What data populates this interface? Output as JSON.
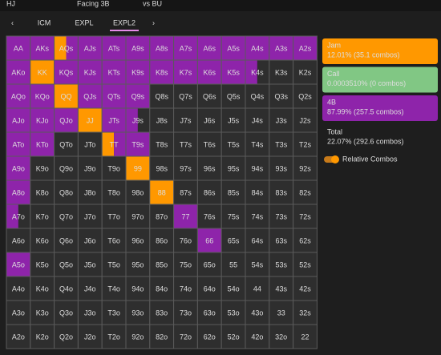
{
  "header": {
    "position": "HJ",
    "facing": "Facing 3B",
    "versus": "vs BU"
  },
  "tabs": [
    "ICM",
    "EXPL",
    "EXPL2"
  ],
  "active_tab": 2,
  "grid": {
    "rows": [
      [
        "AA",
        "AKs",
        "AQs",
        "AJs",
        "ATs",
        "A9s",
        "A8s",
        "A7s",
        "A6s",
        "A5s",
        "A4s",
        "A3s",
        "A2s"
      ],
      [
        "AKo",
        "KK",
        "KQs",
        "KJs",
        "KTs",
        "K9s",
        "K8s",
        "K7s",
        "K6s",
        "K5s",
        "K4s",
        "K3s",
        "K2s"
      ],
      [
        "AQo",
        "KQo",
        "QQ",
        "QJs",
        "QTs",
        "Q9s",
        "Q8s",
        "Q7s",
        "Q6s",
        "Q5s",
        "Q4s",
        "Q3s",
        "Q2s"
      ],
      [
        "AJo",
        "KJo",
        "QJo",
        "JJ",
        "JTs",
        "J9s",
        "J8s",
        "J7s",
        "J6s",
        "J5s",
        "J4s",
        "J3s",
        "J2s"
      ],
      [
        "ATo",
        "KTo",
        "QTo",
        "JTo",
        "TT",
        "T9s",
        "T8s",
        "T7s",
        "T6s",
        "T5s",
        "T4s",
        "T3s",
        "T2s"
      ],
      [
        "A9o",
        "K9o",
        "Q9o",
        "J9o",
        "T9o",
        "99",
        "98s",
        "97s",
        "96s",
        "95s",
        "94s",
        "93s",
        "92s"
      ],
      [
        "A8o",
        "K8o",
        "Q8o",
        "J8o",
        "T8o",
        "98o",
        "88",
        "87s",
        "86s",
        "85s",
        "84s",
        "83s",
        "82s"
      ],
      [
        "A7o",
        "K7o",
        "Q7o",
        "J7o",
        "T7o",
        "97o",
        "87o",
        "77",
        "76s",
        "75s",
        "74s",
        "73s",
        "72s"
      ],
      [
        "A6o",
        "K6o",
        "Q6o",
        "J6o",
        "T6o",
        "96o",
        "86o",
        "76o",
        "66",
        "65s",
        "64s",
        "63s",
        "62s"
      ],
      [
        "A5o",
        "K5o",
        "Q5o",
        "J5o",
        "T5o",
        "95o",
        "85o",
        "75o",
        "65o",
        "55",
        "54s",
        "53s",
        "52s"
      ],
      [
        "A4o",
        "K4o",
        "Q4o",
        "J4o",
        "T4o",
        "94o",
        "84o",
        "74o",
        "64o",
        "54o",
        "44",
        "43s",
        "42s"
      ],
      [
        "A3o",
        "K3o",
        "Q3o",
        "J3o",
        "T3o",
        "93o",
        "83o",
        "73o",
        "63o",
        "53o",
        "43o",
        "33",
        "32s"
      ],
      [
        "A2o",
        "K2o",
        "Q2o",
        "J2o",
        "T2o",
        "92o",
        "82o",
        "72o",
        "62o",
        "52o",
        "42o",
        "32o",
        "22"
      ]
    ],
    "colors": [
      [
        "#8e24aa",
        "#8e24aa",
        [
          "#ff9800",
          "#8e24aa"
        ],
        "#8e24aa",
        "#8e24aa",
        "#8e24aa",
        "#8e24aa",
        "#8e24aa",
        "#8e24aa",
        "#8e24aa",
        "#8e24aa",
        "#8e24aa",
        "#8e24aa"
      ],
      [
        "#8e24aa",
        "#ff9800",
        "#8e24aa",
        "#8e24aa",
        "#8e24aa",
        "#8e24aa",
        "#8e24aa",
        "#8e24aa",
        "#8e24aa",
        "#8e24aa",
        [
          "#8e24aa",
          "#2e2e2e"
        ],
        "#2e2e2e",
        "#2e2e2e"
      ],
      [
        "#8e24aa",
        "#8e24aa",
        "#ff9800",
        "#8e24aa",
        "#8e24aa",
        "#8e24aa",
        "#2e2e2e",
        "#2e2e2e",
        "#2e2e2e",
        "#2e2e2e",
        "#2e2e2e",
        "#2e2e2e",
        "#2e2e2e"
      ],
      [
        "#8e24aa",
        "#8e24aa",
        "#8e24aa",
        "#ff9800",
        "#8e24aa",
        [
          "#8e24aa",
          "#2e2e2e"
        ],
        "#2e2e2e",
        "#2e2e2e",
        "#2e2e2e",
        "#2e2e2e",
        "#2e2e2e",
        "#2e2e2e",
        "#2e2e2e"
      ],
      [
        "#8e24aa",
        "#8e24aa",
        "#2e2e2e",
        "#2e2e2e",
        [
          "#ff9800",
          "#8e24aa"
        ],
        "#8e24aa",
        "#2e2e2e",
        "#2e2e2e",
        "#2e2e2e",
        "#2e2e2e",
        "#2e2e2e",
        "#2e2e2e",
        "#2e2e2e"
      ],
      [
        "#8e24aa",
        "#2e2e2e",
        "#2e2e2e",
        "#2e2e2e",
        "#2e2e2e",
        "#ff9800",
        "#2e2e2e",
        "#2e2e2e",
        "#2e2e2e",
        "#2e2e2e",
        "#2e2e2e",
        "#2e2e2e",
        "#2e2e2e"
      ],
      [
        "#8e24aa",
        "#2e2e2e",
        "#2e2e2e",
        "#2e2e2e",
        "#2e2e2e",
        "#2e2e2e",
        "#ff9800",
        "#2e2e2e",
        "#2e2e2e",
        "#2e2e2e",
        "#2e2e2e",
        "#2e2e2e",
        "#2e2e2e"
      ],
      [
        [
          "#8e24aa",
          "#2e2e2e"
        ],
        "#2e2e2e",
        "#2e2e2e",
        "#2e2e2e",
        "#2e2e2e",
        "#2e2e2e",
        "#2e2e2e",
        "#8e24aa",
        "#2e2e2e",
        "#2e2e2e",
        "#2e2e2e",
        "#2e2e2e",
        "#2e2e2e"
      ],
      [
        "#2e2e2e",
        "#2e2e2e",
        "#2e2e2e",
        "#2e2e2e",
        "#2e2e2e",
        "#2e2e2e",
        "#2e2e2e",
        "#2e2e2e",
        "#8e24aa",
        "#2e2e2e",
        "#2e2e2e",
        "#2e2e2e",
        "#2e2e2e"
      ],
      [
        "#8e24aa",
        "#2e2e2e",
        "#2e2e2e",
        "#2e2e2e",
        "#2e2e2e",
        "#2e2e2e",
        "#2e2e2e",
        "#2e2e2e",
        "#2e2e2e",
        "#2e2e2e",
        "#2e2e2e",
        "#2e2e2e",
        "#2e2e2e"
      ],
      [
        "#2e2e2e",
        "#2e2e2e",
        "#2e2e2e",
        "#2e2e2e",
        "#2e2e2e",
        "#2e2e2e",
        "#2e2e2e",
        "#2e2e2e",
        "#2e2e2e",
        "#2e2e2e",
        "#2e2e2e",
        "#2e2e2e",
        "#2e2e2e"
      ],
      [
        "#2e2e2e",
        "#2e2e2e",
        "#2e2e2e",
        "#2e2e2e",
        "#2e2e2e",
        "#2e2e2e",
        "#2e2e2e",
        "#2e2e2e",
        "#2e2e2e",
        "#2e2e2e",
        "#2e2e2e",
        "#2e2e2e",
        "#2e2e2e"
      ],
      [
        "#2e2e2e",
        "#2e2e2e",
        "#2e2e2e",
        "#2e2e2e",
        "#2e2e2e",
        "#2e2e2e",
        "#2e2e2e",
        "#2e2e2e",
        "#2e2e2e",
        "#2e2e2e",
        "#2e2e2e",
        "#2e2e2e",
        "#2e2e2e"
      ]
    ]
  },
  "legend": [
    {
      "name": "Jam",
      "detail": "12.01% (35.1 combos)",
      "color": "#ff9800"
    },
    {
      "name": "Call",
      "detail": "0.0003510% (0 combos)",
      "color": "#81c784"
    },
    {
      "name": "4B",
      "detail": "87.99% (257.5 combos)",
      "color": "#8e24aa"
    }
  ],
  "total": {
    "name": "Total",
    "detail": "22.07% (292.6 combos)"
  },
  "toggle": "Relative Combos"
}
